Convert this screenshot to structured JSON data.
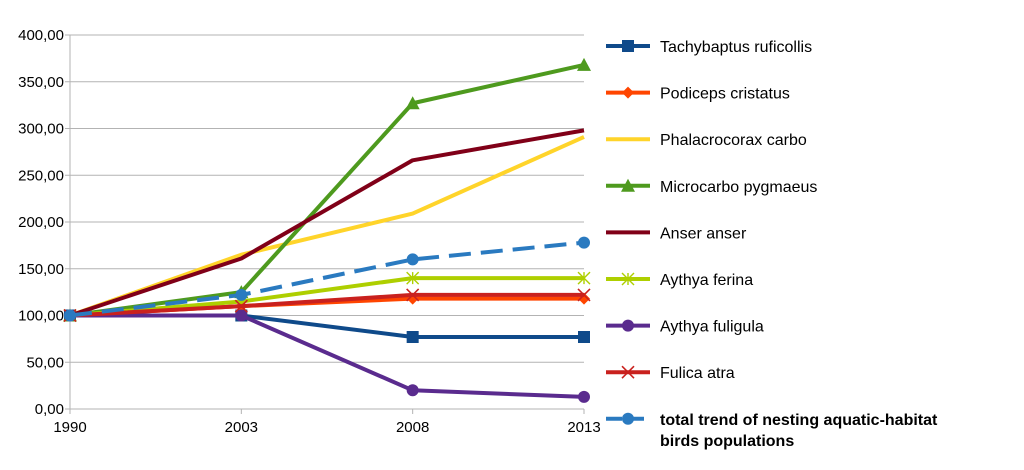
{
  "chart_data": {
    "type": "line",
    "x": [
      "1990",
      "2003",
      "2008",
      "2013"
    ],
    "ylim": [
      0,
      400
    ],
    "y_ticks": [
      "0,00",
      "50,00",
      "100,00",
      "150,00",
      "200,00",
      "250,00",
      "300,00",
      "350,00",
      "400,00"
    ],
    "grid": "horizontal",
    "legend_position": "right",
    "series": [
      {
        "name": "Tachybaptus ruficollis",
        "values": [
          100,
          100,
          77,
          77
        ],
        "color": "#0f4a8a",
        "marker": "square",
        "dash": false
      },
      {
        "name": "Podiceps cristatus",
        "values": [
          100,
          110,
          118,
          118
        ],
        "color": "#ff4500",
        "marker": "diamond",
        "dash": false
      },
      {
        "name": "Phalacrocorax carbo",
        "values": [
          100,
          165,
          209,
          291
        ],
        "color": "#ffd42a",
        "marker": "none",
        "dash": false
      },
      {
        "name": "Microcarbo pygmaeus",
        "values": [
          100,
          125,
          327,
          368
        ],
        "color": "#4e9a1e",
        "marker": "triangle",
        "dash": false
      },
      {
        "name": "Anser anser",
        "values": [
          100,
          161,
          266,
          298
        ],
        "color": "#800018",
        "marker": "none",
        "dash": false
      },
      {
        "name": "Aythya ferina",
        "values": [
          100,
          115,
          140,
          140
        ],
        "color": "#aecf00",
        "marker": "star",
        "dash": false
      },
      {
        "name": "Aythya fuligula",
        "values": [
          100,
          100,
          20,
          13
        ],
        "color": "#5a2b8e",
        "marker": "circle",
        "dash": false
      },
      {
        "name": "Fulica atra",
        "values": [
          100,
          110,
          122,
          122
        ],
        "color": "#c9211e",
        "marker": "x",
        "dash": false
      },
      {
        "name": "total trend of nesting aquatic-habitat birds populations",
        "legend_lines": [
          "total trend of nesting aquatic-habitat",
          "birds populations"
        ],
        "values": [
          100,
          122,
          160,
          178
        ],
        "color": "#2a7ac0",
        "marker": "circle",
        "dash": true,
        "bold": true
      }
    ]
  }
}
